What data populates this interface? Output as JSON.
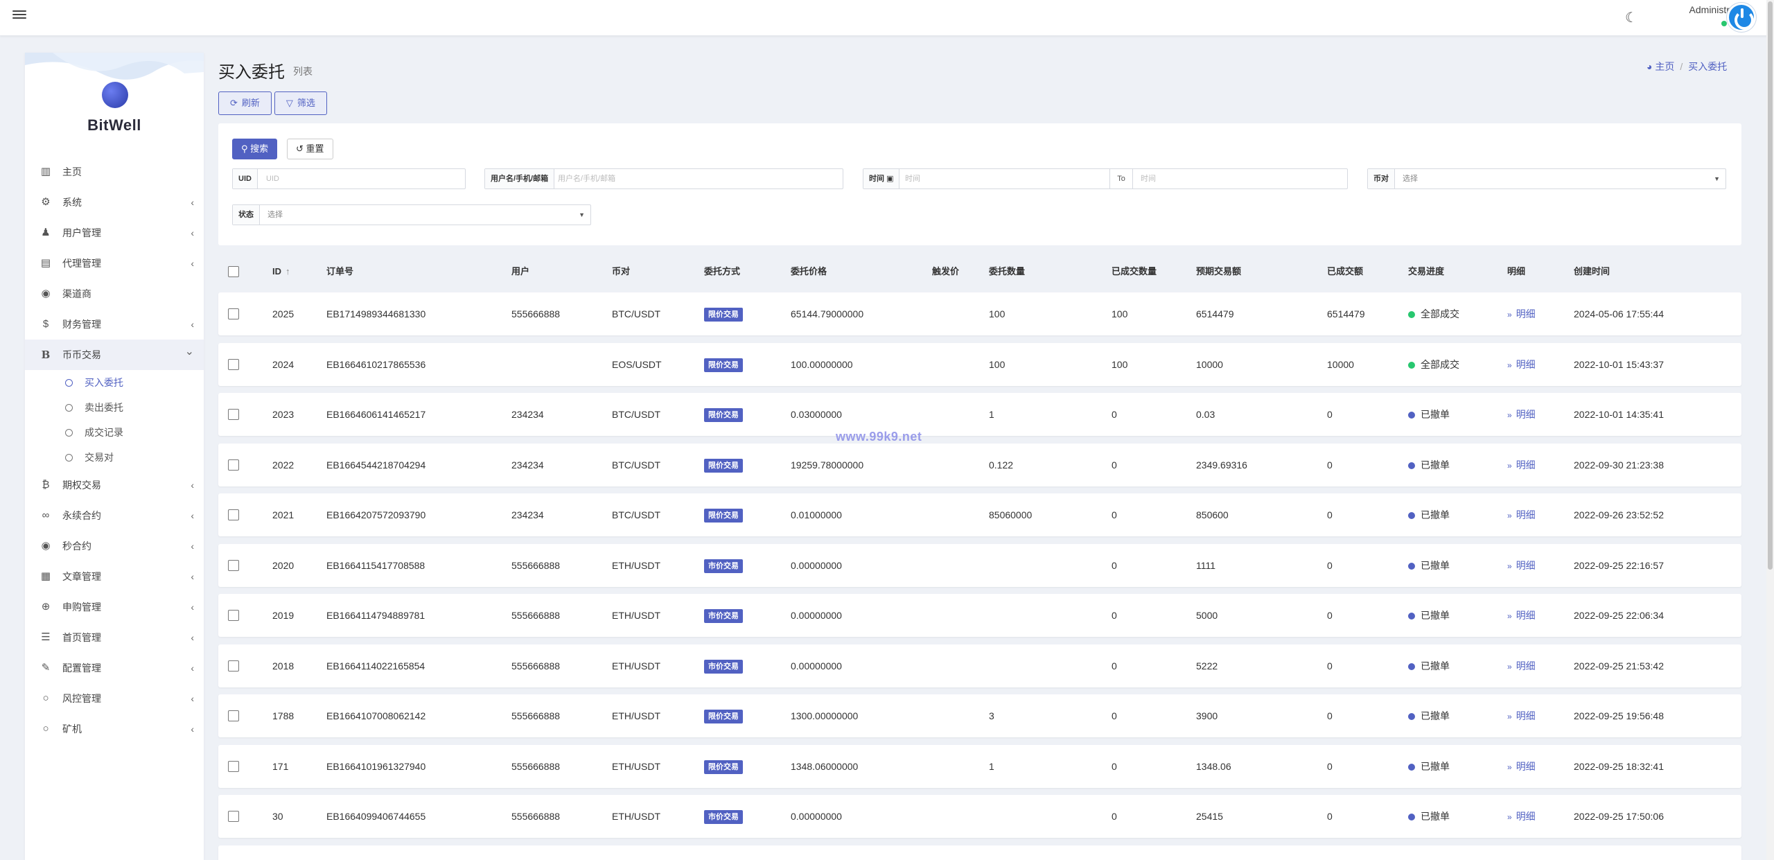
{
  "navbar": {
    "user_name": "Administrator",
    "user_status": "在线"
  },
  "brand": {
    "name": "BitWell"
  },
  "sidebar": {
    "items": [
      {
        "label": "主页",
        "icon": "bar-chart-icon",
        "expandable": false
      },
      {
        "label": "系统",
        "icon": "gear-icon",
        "expandable": true
      },
      {
        "label": "用户管理",
        "icon": "users-icon",
        "expandable": true
      },
      {
        "label": "代理管理",
        "icon": "id-card-icon",
        "expandable": true
      },
      {
        "label": "渠道商",
        "icon": "user-circle-icon",
        "expandable": false
      },
      {
        "label": "财务管理",
        "icon": "dollar-icon",
        "expandable": true
      },
      {
        "label": "币币交易",
        "icon": "bitcoin-b-icon",
        "expandable": true,
        "open": true,
        "children": [
          {
            "label": "买入委托",
            "active": true
          },
          {
            "label": "卖出委托",
            "active": false
          },
          {
            "label": "成交记录",
            "active": false
          },
          {
            "label": "交易对",
            "active": false
          }
        ]
      },
      {
        "label": "期权交易",
        "icon": "bitcoin-icon",
        "expandable": true
      },
      {
        "label": "永续合约",
        "icon": "link-icon",
        "expandable": true
      },
      {
        "label": "秒合约",
        "icon": "dot-circle-icon",
        "expandable": true
      },
      {
        "label": "文章管理",
        "icon": "newspaper-icon",
        "expandable": true
      },
      {
        "label": "申购管理",
        "icon": "life-ring-icon",
        "expandable": true
      },
      {
        "label": "首页管理",
        "icon": "list-icon",
        "expandable": true
      },
      {
        "label": "配置管理",
        "icon": "wrench-icon",
        "expandable": true
      },
      {
        "label": "风控管理",
        "icon": "circle-icon",
        "expandable": true
      },
      {
        "label": "矿机",
        "icon": "circle-icon",
        "expandable": true
      }
    ]
  },
  "header": {
    "title": "买入委托",
    "subtitle": "列表",
    "breadcrumb": {
      "home": "主页",
      "current": "买入委托"
    }
  },
  "toolbar": {
    "refresh_label": "刷新",
    "filter_label": "筛选"
  },
  "filter": {
    "search_label": "搜索",
    "reset_label": "重置",
    "uid": {
      "label": "UID",
      "placeholder": "UID",
      "value": ""
    },
    "user": {
      "label": "用户名/手机/邮箱",
      "placeholder": "用户名/手机/邮箱",
      "value": ""
    },
    "time": {
      "label": "时间",
      "start_placeholder": "时间",
      "to_label": "To",
      "end_placeholder": "时间"
    },
    "pair": {
      "label": "币对",
      "selected": "选择"
    },
    "status": {
      "label": "状态",
      "selected": "选择"
    }
  },
  "table": {
    "columns": [
      "ID",
      "订单号",
      "用户",
      "币对",
      "委托方式",
      "委托价格",
      "触发价",
      "委托数量",
      "已成交数量",
      "预期交易额",
      "已成交额",
      "交易进度",
      "明细",
      "创建时间"
    ],
    "detail_label": "明细",
    "status_colors": {
      "全部成交": "#28c76f",
      "已撤单": "#5161c2"
    },
    "rows": [
      {
        "id": "2025",
        "order_no": "EB1714989344681330",
        "user": "555666888",
        "pair": "BTC/USDT",
        "method": "限价交易",
        "price": "65144.79000000",
        "trigger": "",
        "qty": "100",
        "filled_qty": "100",
        "expected": "6514479",
        "filled_amount": "6514479",
        "progress": "全部成交",
        "created": "2024-05-06 17:55:44"
      },
      {
        "id": "2024",
        "order_no": "EB1664610217865536",
        "user": "",
        "pair": "EOS/USDT",
        "method": "限价交易",
        "price": "100.00000000",
        "trigger": "",
        "qty": "100",
        "filled_qty": "100",
        "expected": "10000",
        "filled_amount": "10000",
        "progress": "全部成交",
        "created": "2022-10-01 15:43:37"
      },
      {
        "id": "2023",
        "order_no": "EB1664606141465217",
        "user": "234234",
        "pair": "BTC/USDT",
        "method": "限价交易",
        "price": "0.03000000",
        "trigger": "",
        "qty": "1",
        "filled_qty": "0",
        "expected": "0.03",
        "filled_amount": "0",
        "progress": "已撤单",
        "created": "2022-10-01 14:35:41"
      },
      {
        "id": "2022",
        "order_no": "EB1664544218704294",
        "user": "234234",
        "pair": "BTC/USDT",
        "method": "限价交易",
        "price": "19259.78000000",
        "trigger": "",
        "qty": "0.122",
        "filled_qty": "0",
        "expected": "2349.69316",
        "filled_amount": "0",
        "progress": "已撤单",
        "created": "2022-09-30 21:23:38"
      },
      {
        "id": "2021",
        "order_no": "EB1664207572093790",
        "user": "234234",
        "pair": "BTC/USDT",
        "method": "限价交易",
        "price": "0.01000000",
        "trigger": "",
        "qty": "85060000",
        "filled_qty": "0",
        "expected": "850600",
        "filled_amount": "0",
        "progress": "已撤单",
        "created": "2022-09-26 23:52:52"
      },
      {
        "id": "2020",
        "order_no": "EB1664115417708588",
        "user": "555666888",
        "pair": "ETH/USDT",
        "method": "市价交易",
        "price": "0.00000000",
        "trigger": "",
        "qty": "",
        "filled_qty": "0",
        "expected": "1111",
        "filled_amount": "0",
        "progress": "已撤单",
        "created": "2022-09-25 22:16:57"
      },
      {
        "id": "2019",
        "order_no": "EB1664114794889781",
        "user": "555666888",
        "pair": "ETH/USDT",
        "method": "市价交易",
        "price": "0.00000000",
        "trigger": "",
        "qty": "",
        "filled_qty": "0",
        "expected": "5000",
        "filled_amount": "0",
        "progress": "已撤单",
        "created": "2022-09-25 22:06:34"
      },
      {
        "id": "2018",
        "order_no": "EB1664114022165854",
        "user": "555666888",
        "pair": "ETH/USDT",
        "method": "市价交易",
        "price": "0.00000000",
        "trigger": "",
        "qty": "",
        "filled_qty": "0",
        "expected": "5222",
        "filled_amount": "0",
        "progress": "已撤单",
        "created": "2022-09-25 21:53:42"
      },
      {
        "id": "1788",
        "order_no": "EB1664107008062142",
        "user": "555666888",
        "pair": "ETH/USDT",
        "method": "限价交易",
        "price": "1300.00000000",
        "trigger": "",
        "qty": "3",
        "filled_qty": "0",
        "expected": "3900",
        "filled_amount": "0",
        "progress": "已撤单",
        "created": "2022-09-25 19:56:48"
      },
      {
        "id": "171",
        "order_no": "EB1664101961327940",
        "user": "555666888",
        "pair": "ETH/USDT",
        "method": "限价交易",
        "price": "1348.06000000",
        "trigger": "",
        "qty": "1",
        "filled_qty": "0",
        "expected": "1348.06",
        "filled_amount": "0",
        "progress": "已撤单",
        "created": "2022-09-25 18:32:41"
      },
      {
        "id": "30",
        "order_no": "EB1664099406744655",
        "user": "555666888",
        "pair": "ETH/USDT",
        "method": "市价交易",
        "price": "0.00000000",
        "trigger": "",
        "qty": "",
        "filled_qty": "0",
        "expected": "25415",
        "filled_amount": "0",
        "progress": "已撤单",
        "created": "2022-09-25 17:50:06"
      }
    ]
  },
  "watermark": "www.99k9.net"
}
